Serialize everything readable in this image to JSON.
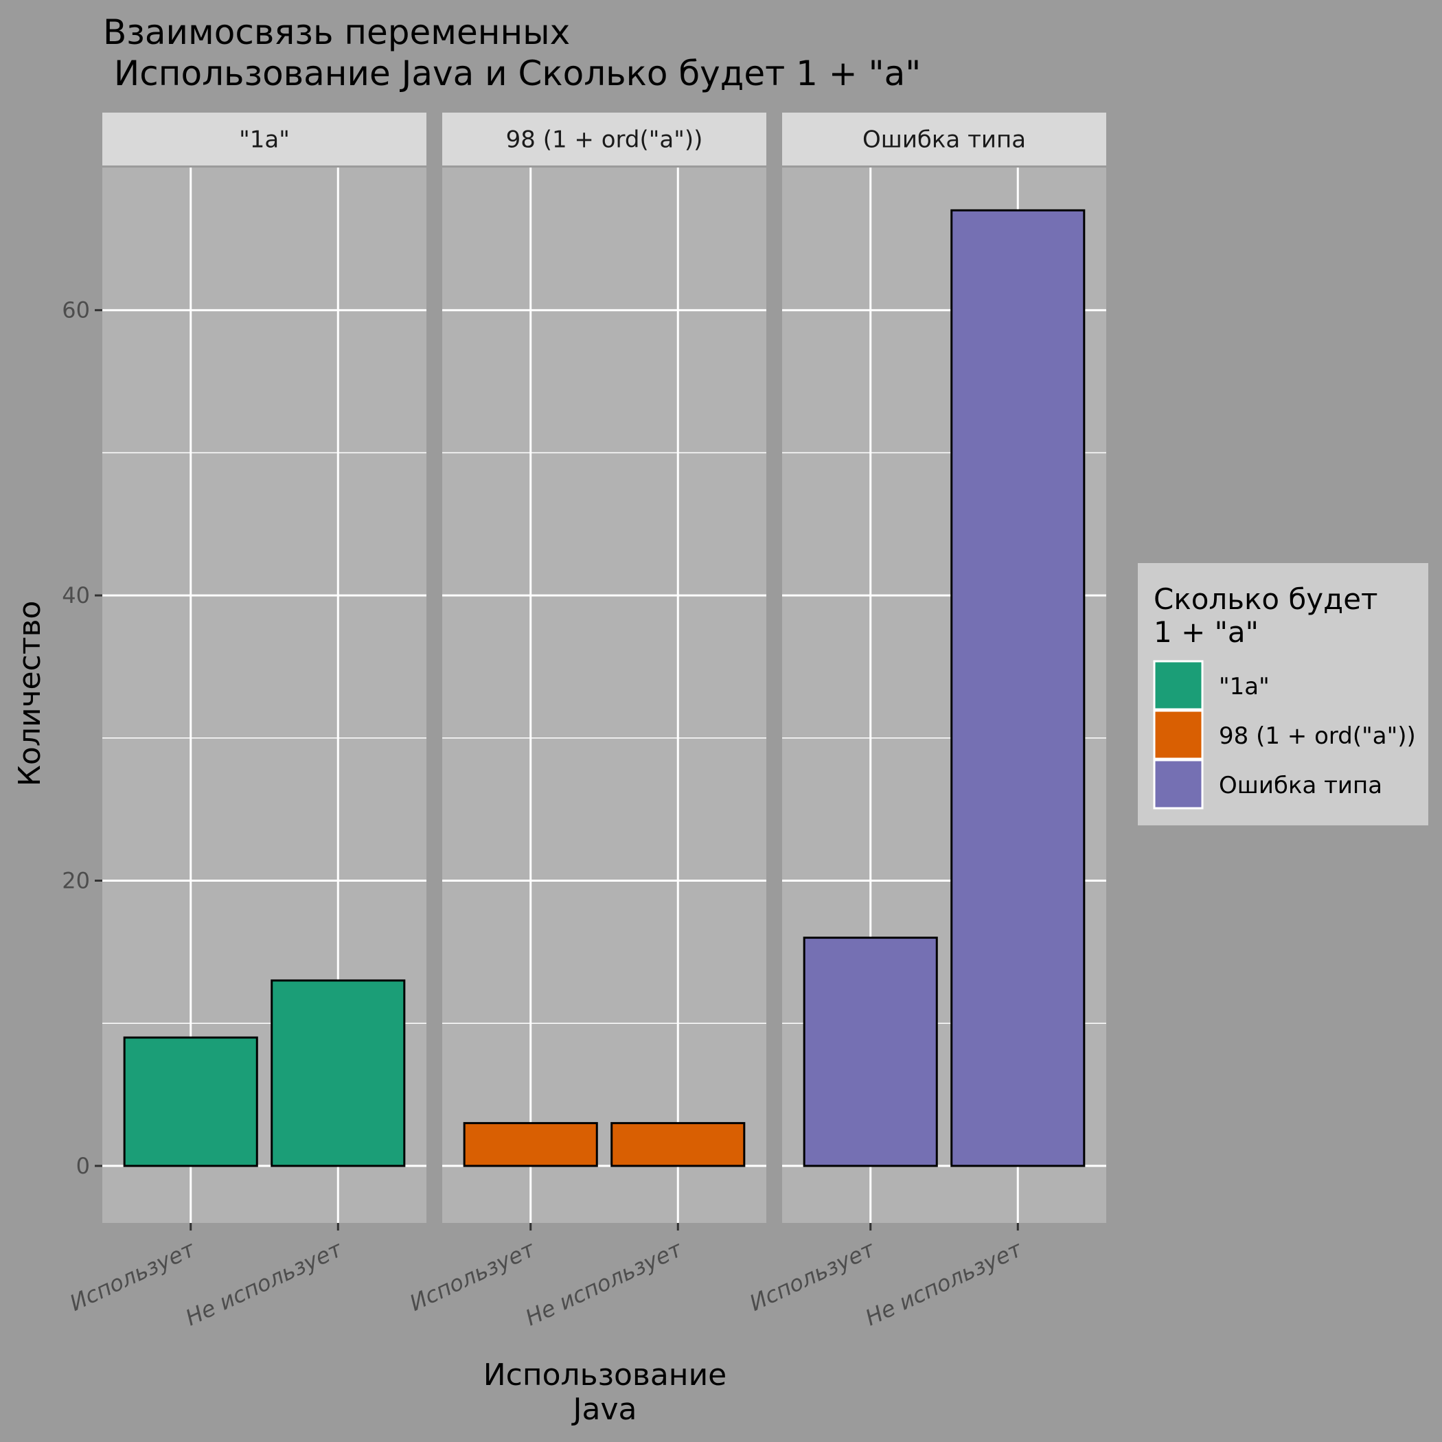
{
  "chart_data": {
    "type": "bar",
    "title_lines": [
      "Взаимосвязь переменных",
      " Использование Java и Сколько будет 1 + \"а\""
    ],
    "xlabel_lines": [
      "Использование",
      "Java"
    ],
    "ylabel": "Количество",
    "ylim": [
      -4,
      70
    ],
    "yticks": [
      0,
      20,
      40,
      60
    ],
    "grid": true,
    "categories": [
      "Использует",
      "Не использует"
    ],
    "facets": [
      {
        "label": "\"1a\"",
        "values": [
          9,
          13
        ],
        "color": "#1b9e77"
      },
      {
        "label": "98 (1 + ord(\"a\"))",
        "values": [
          3,
          3
        ],
        "color": "#d95f02"
      },
      {
        "label": "Ошибка типа",
        "values": [
          16,
          67
        ],
        "color": "#7570b3"
      }
    ],
    "legend": {
      "title_lines": [
        "Сколько будет",
        "1 + \"a\""
      ],
      "placement": "right",
      "items": [
        {
          "label": "\"1a\"",
          "color": "#1b9e77"
        },
        {
          "label": "98 (1 + ord(\"a\"))",
          "color": "#d95f02"
        },
        {
          "label": "Ошибка типа",
          "color": "#7570b3"
        }
      ]
    },
    "colors": {
      "background": "#9b9b9b",
      "panel": "#b2b2b2",
      "strip": "#d9d9d9",
      "legend_box": "#cccccc",
      "grid": "#ffffff"
    }
  }
}
